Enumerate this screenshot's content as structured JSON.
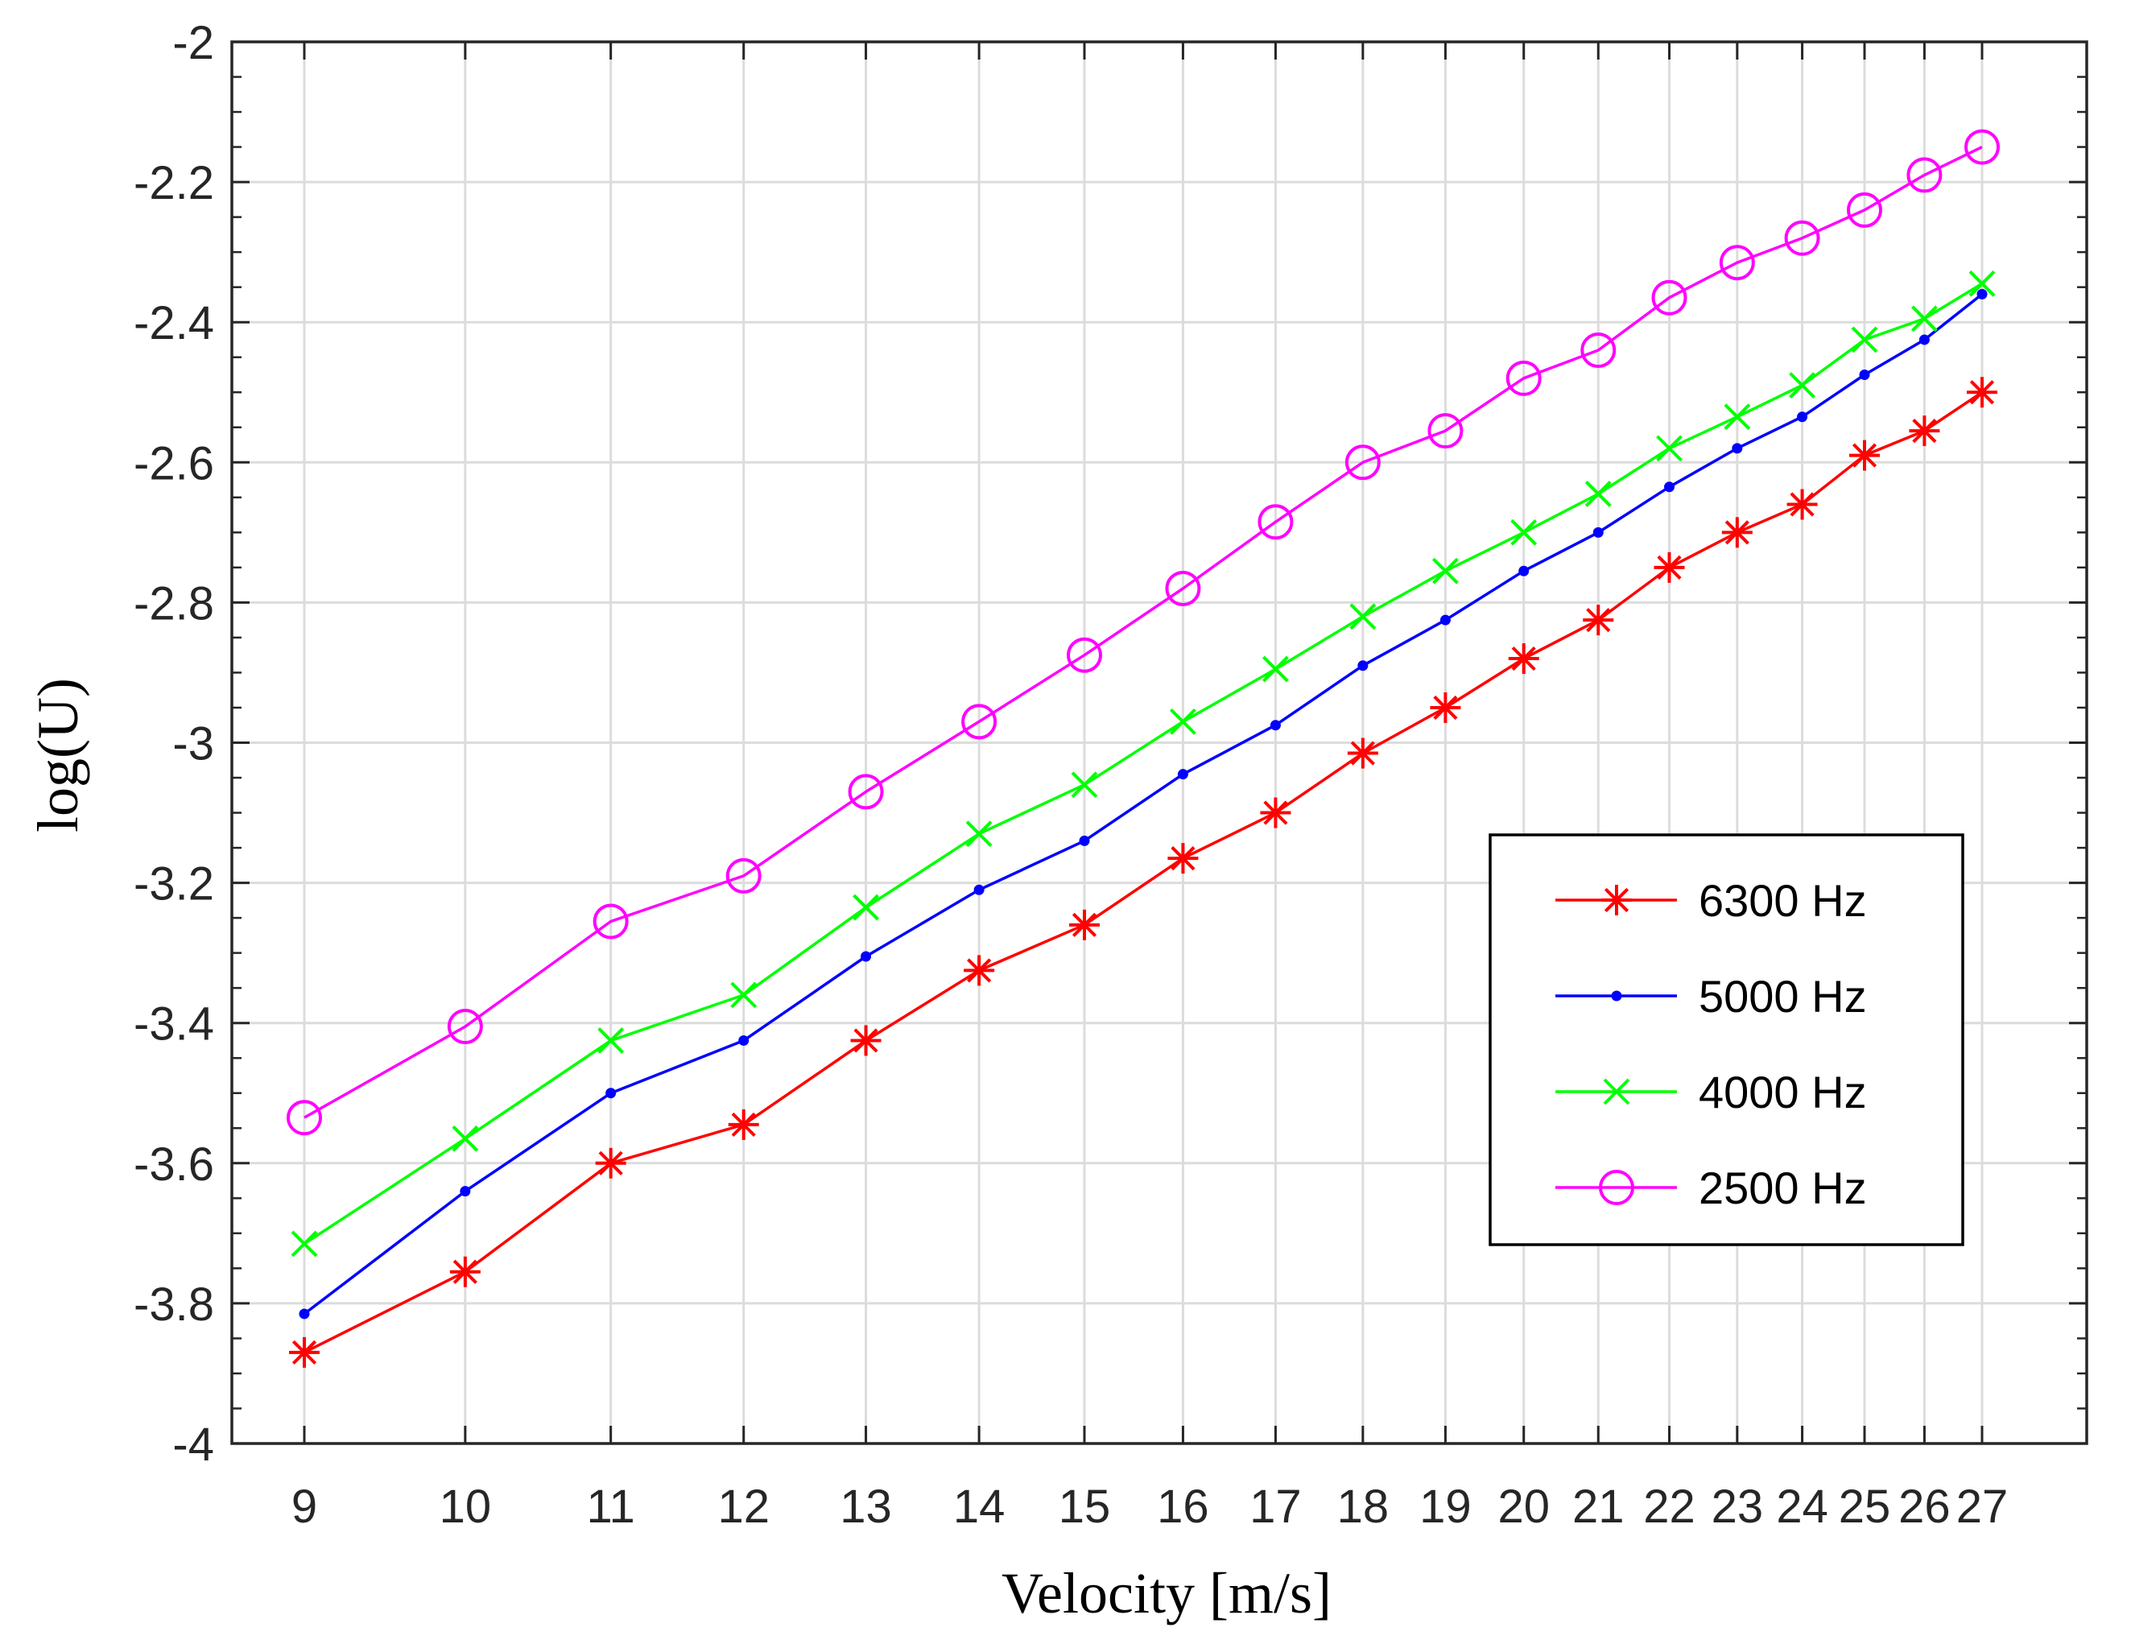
{
  "chart_data": {
    "type": "line",
    "xlabel": "Velocity [m/s]",
    "ylabel": "log(U)",
    "x": [
      9,
      10,
      11,
      12,
      13,
      14,
      15,
      16,
      17,
      18,
      19,
      20,
      21,
      22,
      23,
      24,
      25,
      26,
      27
    ],
    "x_tick_labels": [
      "9",
      "10",
      "11",
      "12",
      "13",
      "14",
      "15",
      "16",
      "17",
      "18",
      "19",
      "20",
      "21",
      "22",
      "23",
      "24",
      "25",
      "26",
      "27"
    ],
    "ylim": [
      -4,
      -2
    ],
    "y_ticks": [
      -4,
      -3.8,
      -3.6,
      -3.4,
      -3.2,
      -3,
      -2.8,
      -2.6,
      -2.4,
      -2.2,
      -2
    ],
    "y_tick_labels": [
      "-4",
      "-3.8",
      "-3.6",
      "-3.4",
      "-3.2",
      "-3",
      "-2.8",
      "-2.6",
      "-2.4",
      "-2.2",
      "-2"
    ],
    "x_scale": "log",
    "grid": true,
    "legend_position": "right-middle",
    "series": [
      {
        "name": "6300 Hz",
        "color": "#ff0000",
        "marker": "asterisk",
        "values": [
          -3.87,
          -3.755,
          -3.6,
          -3.545,
          -3.425,
          -3.325,
          -3.26,
          -3.165,
          -3.1,
          -3.015,
          -2.95,
          -2.88,
          -2.825,
          -2.75,
          -2.7,
          -2.66,
          -2.59,
          -2.555,
          -2.5
        ]
      },
      {
        "name": "5000 Hz",
        "color": "#0000ff",
        "marker": "dot",
        "values": [
          -3.815,
          -3.64,
          -3.5,
          -3.425,
          -3.305,
          -3.21,
          -3.14,
          -3.045,
          -2.975,
          -2.89,
          -2.825,
          -2.755,
          -2.7,
          -2.635,
          -2.58,
          -2.535,
          -2.475,
          -2.425,
          -2.36
        ]
      },
      {
        "name": "4000 Hz",
        "color": "#00ff00",
        "marker": "x",
        "values": [
          -3.715,
          -3.565,
          -3.425,
          -3.36,
          -3.235,
          -3.13,
          -3.06,
          -2.97,
          -2.895,
          -2.82,
          -2.755,
          -2.7,
          -2.645,
          -2.58,
          -2.535,
          -2.49,
          -2.425,
          -2.395,
          -2.345
        ]
      },
      {
        "name": "2500 Hz",
        "color": "#ff00ff",
        "marker": "circle",
        "values": [
          -3.535,
          -3.405,
          -3.255,
          -3.19,
          -3.07,
          -2.97,
          -2.875,
          -2.78,
          -2.685,
          -2.6,
          -2.555,
          -2.48,
          -2.44,
          -2.365,
          -2.315,
          -2.28,
          -2.24,
          -2.19,
          -2.15
        ]
      }
    ]
  }
}
